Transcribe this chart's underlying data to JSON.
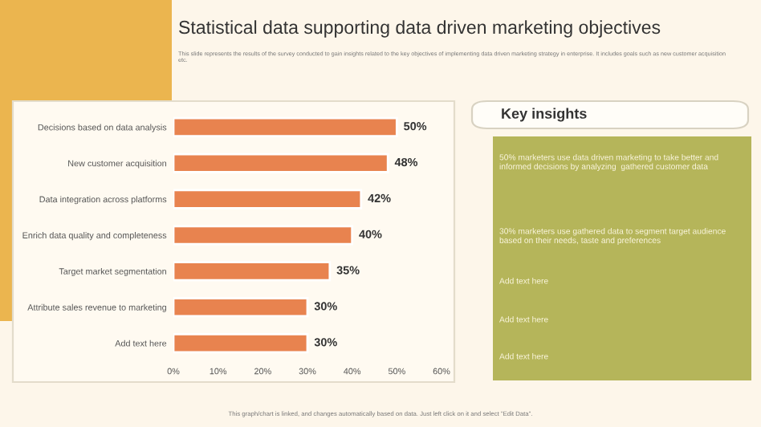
{
  "chart_data": [
    {
      "type": "bar",
      "orientation": "horizontal",
      "title": "Statistical data supporting data driven marketing objectives",
      "subtitle": "This slide represents the results of the survey conducted to gain insights related to the key objectives of implementing data driven marketing strategy in enterprise. It includes goals such as new customer acquisition etc.",
      "categories": [
        "Decisions based on data analysis",
        "New customer acquisition",
        "Data integration across platforms",
        "Enrich data quality and completeness",
        "Target market segmentation",
        "Attribute sales revenue to marketing",
        "Add text here"
      ],
      "values": [
        50,
        48,
        42,
        40,
        35,
        30,
        30
      ],
      "value_labels": [
        "50%",
        "48%",
        "42%",
        "40%",
        "35%",
        "30%",
        "30%"
      ],
      "color": "#e8834f",
      "xlim": [
        0,
        60
      ],
      "xticks": [
        {
          "value": 0,
          "label": "0%"
        },
        {
          "value": 10,
          "label": "10%"
        },
        {
          "value": 20,
          "label": "20%"
        },
        {
          "value": 30,
          "label": "30%"
        },
        {
          "value": 40,
          "label": "40%"
        },
        {
          "value": 50,
          "label": "50%"
        },
        {
          "value": 60,
          "label": "60%"
        }
      ],
      "annotations": [
        "This graph/chart is linked, and changes automatically based on data. Just left click on it and select \"Edit Data\"."
      ]
    },
    {
      "type": "other",
      "title": "Key insights",
      "annotations": [
        "50% marketers use data driven marketing to take better and informed decisions by analyzing  gathered customer data",
        "30% marketers use gathered data to segment target audience based on their needs, taste and preferences",
        "Add text here",
        "Add text here",
        "Add text here"
      ]
    }
  ]
}
